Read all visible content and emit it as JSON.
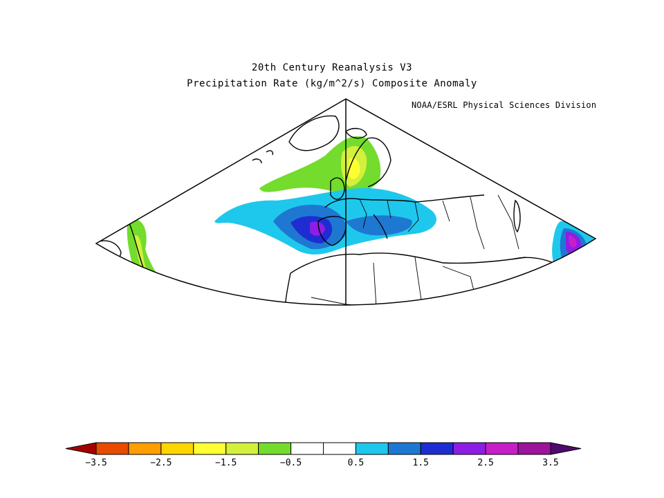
{
  "title_line1": "20th Century Reanalysis V3",
  "title_line2": "Precipitation Rate (kg/m^2/s) Composite Anomaly",
  "credit": "NOAA/ESRL Physical Sciences Division",
  "colorbar": {
    "colors": [
      "#a50000",
      "#e84a00",
      "#ff9e00",
      "#ffd500",
      "#ffff33",
      "#d2f03c",
      "#73dc2d",
      "#ffffff",
      "#ffffff",
      "#1ec8ec",
      "#1e78d2",
      "#1e2dd2",
      "#8c1ee6",
      "#c81ec8",
      "#9b149b",
      "#500a6e"
    ],
    "tick_labels": [
      "-3.5",
      "-2.5",
      "-1.5",
      "-0.5",
      "0.5",
      "1.5",
      "2.5",
      "3.5"
    ]
  },
  "map": {
    "projection": "conic",
    "region": "North Atlantic, Europe and Africa",
    "colors": {
      "dry_green": "#73dc2d",
      "dry_lightgreen": "#d2f03c",
      "dry_yellow": "#ffff33",
      "wet_cyan": "#1ec8ec",
      "wet_blue": "#1e78d2",
      "wet_darkblue": "#1e2dd2",
      "wet_purple": "#8c1ee6",
      "wet_magenta": "#c81ec8"
    }
  }
}
